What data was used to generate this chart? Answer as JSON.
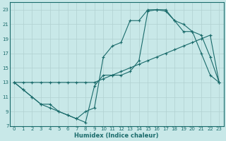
{
  "xlabel": "Humidex (Indice chaleur)",
  "bg_color": "#c8e8e8",
  "grid_color": "#b0d0d0",
  "line_color": "#1a6b6b",
  "xlim": [
    -0.5,
    23.5
  ],
  "ylim": [
    7,
    24
  ],
  "xticks": [
    0,
    1,
    2,
    3,
    4,
    5,
    6,
    7,
    8,
    9,
    10,
    11,
    12,
    13,
    14,
    15,
    16,
    17,
    18,
    19,
    20,
    21,
    22,
    23
  ],
  "yticks": [
    7,
    9,
    11,
    13,
    15,
    17,
    19,
    21,
    23
  ],
  "line1_x": [
    0,
    1,
    2,
    3,
    4,
    5,
    6,
    7,
    8,
    9,
    10,
    11,
    12,
    13,
    14,
    15,
    16,
    17,
    18,
    19,
    20,
    21,
    22,
    23
  ],
  "line1_y": [
    13,
    12,
    11,
    10,
    10,
    9,
    8.5,
    8,
    7.5,
    12.5,
    14,
    14,
    14,
    14.5,
    16,
    22.8,
    23,
    23,
    21.5,
    20,
    20,
    19.5,
    16.5,
    13
  ],
  "line2_x": [
    0,
    1,
    2,
    3,
    4,
    5,
    6,
    7,
    8,
    9,
    10,
    11,
    12,
    13,
    14,
    15,
    16,
    17,
    18,
    19,
    20,
    21,
    22,
    23
  ],
  "line2_y": [
    13,
    13,
    13,
    13,
    13,
    13,
    13,
    13,
    13,
    13,
    13.5,
    14,
    14.5,
    15,
    15.5,
    16,
    16.5,
    17,
    17.5,
    18,
    18.5,
    19,
    19.5,
    13
  ],
  "line3_x": [
    0,
    1,
    2,
    3,
    4,
    5,
    6,
    7,
    8,
    9,
    10,
    11,
    12,
    13,
    14,
    15,
    16,
    17,
    18,
    19,
    20,
    21,
    22,
    23
  ],
  "line3_y": [
    13,
    12,
    11,
    10,
    9.5,
    9,
    8.5,
    8,
    9,
    9.5,
    16.5,
    18,
    18.5,
    21.5,
    21.5,
    23,
    23,
    22.8,
    21.5,
    21,
    20,
    17,
    14,
    13
  ]
}
